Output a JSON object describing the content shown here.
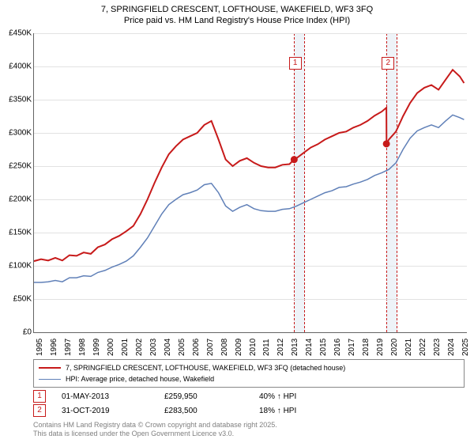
{
  "title_line1": "7, SPRINGFIELD CRESCENT, LOFTHOUSE, WAKEFIELD, WF3 3FQ",
  "title_line2": "Price paid vs. HM Land Registry's House Price Index (HPI)",
  "chart": {
    "type": "line",
    "background_color": "#ffffff",
    "grid_color": "#e2e2e2",
    "axis_color": "#646464",
    "ylim": [
      0,
      450000
    ],
    "ytick_step": 50000,
    "y_ticks": [
      "£0",
      "£50K",
      "£100K",
      "£150K",
      "£200K",
      "£250K",
      "£300K",
      "£350K",
      "£400K",
      "£450K"
    ],
    "x_ticks": [
      "1995",
      "1996",
      "1997",
      "1998",
      "1999",
      "2000",
      "2001",
      "2002",
      "2003",
      "2004",
      "2005",
      "2006",
      "2007",
      "2008",
      "2009",
      "2010",
      "2011",
      "2012",
      "2013",
      "2014",
      "2015",
      "2016",
      "2017",
      "2018",
      "2019",
      "2020",
      "2021",
      "2022",
      "2023",
      "2024",
      "2025"
    ],
    "x_range": [
      1995,
      2025.5
    ],
    "highlight_bands": [
      {
        "start": 2013.33,
        "end": 2014.0
      },
      {
        "start": 2019.83,
        "end": 2020.5
      }
    ],
    "markers": [
      {
        "label": "1",
        "x": 2013.4,
        "y_box": 405000,
        "point_year": 2013.33,
        "point_value": 259950
      },
      {
        "label": "2",
        "x": 2019.95,
        "y_box": 405000,
        "point_year": 2019.83,
        "point_value": 283500
      }
    ],
    "series": [
      {
        "name": "7, SPRINGFIELD CRESCENT, LOFTHOUSE, WAKEFIELD, WF3 3FQ (detached house)",
        "color": "#c71a1a",
        "line_width": 2,
        "data": [
          [
            1995,
            107000
          ],
          [
            1995.5,
            110000
          ],
          [
            1996,
            108000
          ],
          [
            1996.5,
            112000
          ],
          [
            1997,
            108000
          ],
          [
            1997.5,
            116000
          ],
          [
            1998,
            115000
          ],
          [
            1998.5,
            120000
          ],
          [
            1999,
            118000
          ],
          [
            1999.5,
            128000
          ],
          [
            2000,
            132000
          ],
          [
            2000.5,
            140000
          ],
          [
            2001,
            145000
          ],
          [
            2001.5,
            152000
          ],
          [
            2002,
            160000
          ],
          [
            2002.5,
            178000
          ],
          [
            2003,
            200000
          ],
          [
            2003.5,
            225000
          ],
          [
            2004,
            248000
          ],
          [
            2004.5,
            268000
          ],
          [
            2005,
            280000
          ],
          [
            2005.5,
            290000
          ],
          [
            2006,
            295000
          ],
          [
            2006.5,
            300000
          ],
          [
            2007,
            312000
          ],
          [
            2007.5,
            318000
          ],
          [
            2008,
            290000
          ],
          [
            2008.5,
            260000
          ],
          [
            2009,
            250000
          ],
          [
            2009.5,
            258000
          ],
          [
            2010,
            262000
          ],
          [
            2010.5,
            255000
          ],
          [
            2011,
            250000
          ],
          [
            2011.5,
            248000
          ],
          [
            2012,
            248000
          ],
          [
            2012.5,
            252000
          ],
          [
            2013,
            253000
          ],
          [
            2013.33,
            259950
          ],
          [
            2013.5,
            262000
          ],
          [
            2014,
            270000
          ],
          [
            2014.5,
            278000
          ],
          [
            2015,
            283000
          ],
          [
            2015.5,
            290000
          ],
          [
            2016,
            295000
          ],
          [
            2016.5,
            300000
          ],
          [
            2017,
            302000
          ],
          [
            2017.5,
            308000
          ],
          [
            2018,
            312000
          ],
          [
            2018.5,
            318000
          ],
          [
            2019,
            326000
          ],
          [
            2019.5,
            332000
          ],
          [
            2019.83,
            338000
          ],
          [
            2019.84,
            283500
          ],
          [
            2020,
            290000
          ],
          [
            2020.5,
            302000
          ],
          [
            2021,
            325000
          ],
          [
            2021.5,
            345000
          ],
          [
            2022,
            360000
          ],
          [
            2022.5,
            368000
          ],
          [
            2023,
            372000
          ],
          [
            2023.5,
            365000
          ],
          [
            2024,
            380000
          ],
          [
            2024.5,
            395000
          ],
          [
            2025,
            385000
          ],
          [
            2025.3,
            375000
          ]
        ]
      },
      {
        "name": "HPI: Average price, detached house, Wakefield",
        "color": "#6080b8",
        "line_width": 1.5,
        "data": [
          [
            1995,
            75000
          ],
          [
            1995.5,
            75000
          ],
          [
            1996,
            76000
          ],
          [
            1996.5,
            78000
          ],
          [
            1997,
            76000
          ],
          [
            1997.5,
            82000
          ],
          [
            1998,
            82000
          ],
          [
            1998.5,
            85000
          ],
          [
            1999,
            84000
          ],
          [
            1999.5,
            90000
          ],
          [
            2000,
            93000
          ],
          [
            2000.5,
            98000
          ],
          [
            2001,
            102000
          ],
          [
            2001.5,
            107000
          ],
          [
            2002,
            115000
          ],
          [
            2002.5,
            128000
          ],
          [
            2003,
            142000
          ],
          [
            2003.5,
            160000
          ],
          [
            2004,
            178000
          ],
          [
            2004.5,
            192000
          ],
          [
            2005,
            200000
          ],
          [
            2005.5,
            207000
          ],
          [
            2006,
            210000
          ],
          [
            2006.5,
            214000
          ],
          [
            2007,
            222000
          ],
          [
            2007.5,
            224000
          ],
          [
            2008,
            210000
          ],
          [
            2008.5,
            190000
          ],
          [
            2009,
            182000
          ],
          [
            2009.5,
            188000
          ],
          [
            2010,
            192000
          ],
          [
            2010.5,
            186000
          ],
          [
            2011,
            183000
          ],
          [
            2011.5,
            182000
          ],
          [
            2012,
            182000
          ],
          [
            2012.5,
            185000
          ],
          [
            2013,
            186000
          ],
          [
            2013.5,
            190000
          ],
          [
            2014,
            195000
          ],
          [
            2014.5,
            200000
          ],
          [
            2015,
            205000
          ],
          [
            2015.5,
            210000
          ],
          [
            2016,
            213000
          ],
          [
            2016.5,
            218000
          ],
          [
            2017,
            219000
          ],
          [
            2017.5,
            223000
          ],
          [
            2018,
            226000
          ],
          [
            2018.5,
            230000
          ],
          [
            2019,
            236000
          ],
          [
            2019.5,
            240000
          ],
          [
            2020,
            245000
          ],
          [
            2020.5,
            255000
          ],
          [
            2021,
            275000
          ],
          [
            2021.5,
            292000
          ],
          [
            2022,
            303000
          ],
          [
            2022.5,
            308000
          ],
          [
            2023,
            312000
          ],
          [
            2023.5,
            308000
          ],
          [
            2024,
            318000
          ],
          [
            2024.5,
            327000
          ],
          [
            2025,
            323000
          ],
          [
            2025.3,
            320000
          ]
        ]
      }
    ]
  },
  "legend": {
    "items": [
      {
        "label": "7, SPRINGFIELD CRESCENT, LOFTHOUSE, WAKEFIELD, WF3 3FQ (detached house)",
        "color": "#c71a1a",
        "width": 2
      },
      {
        "label": "HPI: Average price, detached house, Wakefield",
        "color": "#6080b8",
        "width": 1.5
      }
    ]
  },
  "sales": [
    {
      "marker": "1",
      "date": "01-MAY-2013",
      "price": "£259,950",
      "hpi": "40% ↑ HPI"
    },
    {
      "marker": "2",
      "date": "31-OCT-2019",
      "price": "£283,500",
      "hpi": "18% ↑ HPI"
    }
  ],
  "footer_line1": "Contains HM Land Registry data © Crown copyright and database right 2025.",
  "footer_line2": "This data is licensed under the Open Government Licence v3.0."
}
